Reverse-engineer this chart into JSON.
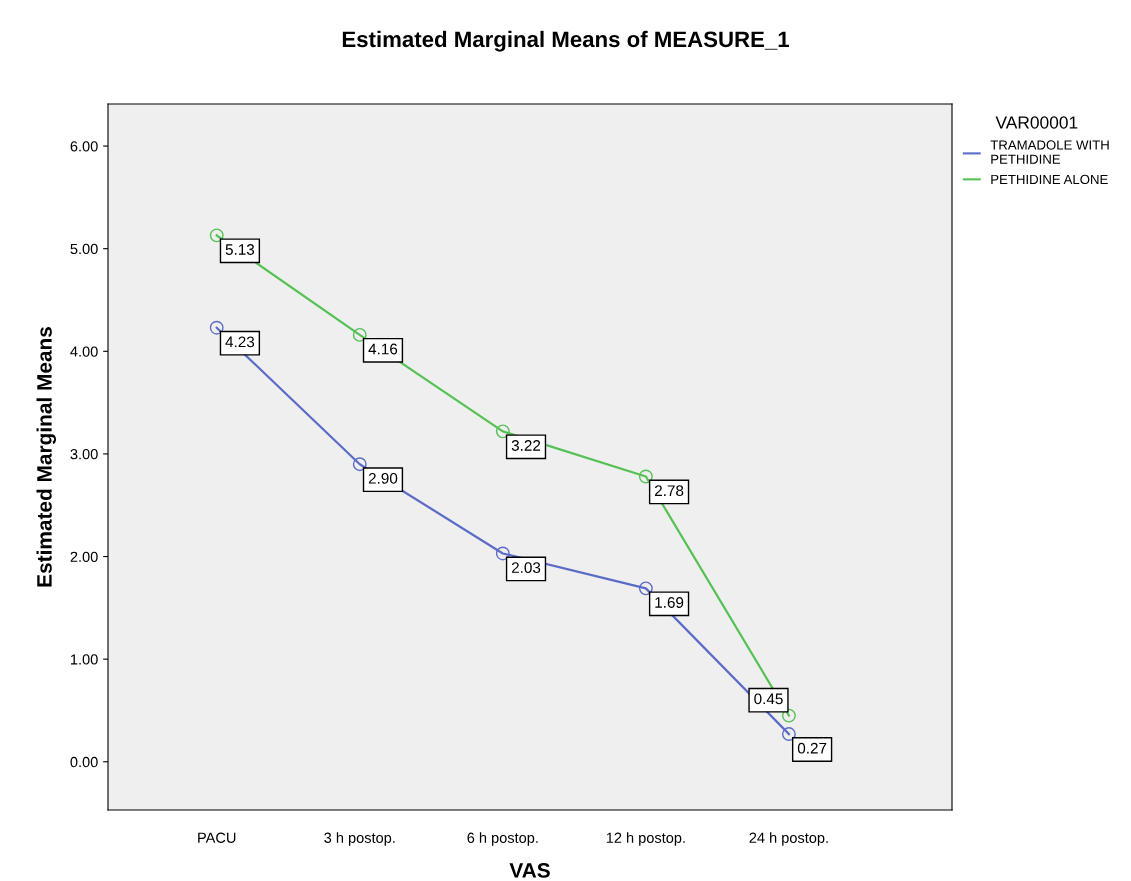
{
  "chart_data": {
    "type": "line",
    "title": "Estimated Marginal Means of MEASURE_1",
    "xlabel": "VAS",
    "ylabel": "Estimated Marginal Means",
    "legend_title": "VAR00001",
    "categories": [
      "PACU",
      "3 h postop.",
      "6 h postop.",
      "12 h postop.",
      "24 h postop."
    ],
    "series": [
      {
        "name": "TRAMADOLE WITH\nPETHIDINE",
        "color": "#5b6cc8",
        "values": [
          4.23,
          2.9,
          2.03,
          1.69,
          0.27
        ],
        "value_labels": [
          "4.23",
          "2.90",
          "2.03",
          "1.69",
          "0.27"
        ]
      },
      {
        "name": "PETHIDINE ALONE",
        "color": "#55c155",
        "values": [
          5.13,
          4.16,
          3.22,
          2.78,
          0.45
        ],
        "value_labels": [
          "5.13",
          "4.16",
          "3.22",
          "2.78",
          "0.45"
        ]
      }
    ],
    "ylim": [
      -0.47,
      6.41
    ],
    "yticks": [
      {
        "value": 0,
        "label": "0.00"
      },
      {
        "value": 1,
        "label": "1.00"
      },
      {
        "value": 2,
        "label": "2.00"
      },
      {
        "value": 3,
        "label": "3.00"
      },
      {
        "value": 4,
        "label": "4.00"
      },
      {
        "value": 5,
        "label": "5.00"
      },
      {
        "value": 6,
        "label": "6.00"
      }
    ],
    "marker": "circle",
    "line_style": "solid",
    "grid": false,
    "legend": "right"
  }
}
